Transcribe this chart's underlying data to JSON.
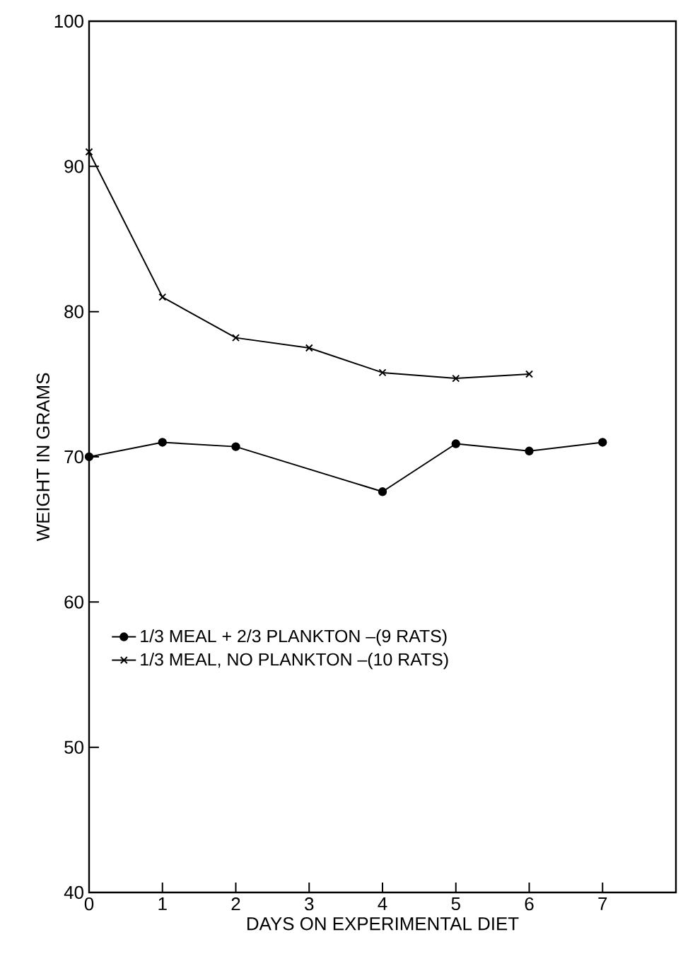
{
  "chart_data": {
    "type": "line",
    "xlabel": "DAYS    ON    EXPERIMENTAL  DIET",
    "ylabel": "WEIGHT    IN    GRAMS",
    "series": [
      {
        "name": "1/3 MEAL + 2/3 PLANKTON –(9 RATS)",
        "color": "#000000",
        "marker": "circle",
        "x": [
          0,
          1,
          2,
          4,
          5,
          6,
          7
        ],
        "values": [
          70,
          71,
          70.7,
          67.6,
          70.9,
          70.4,
          71
        ]
      },
      {
        "name": "1/3 MEAL, NO PLANKTON –(10 RATS)",
        "color": "#000000",
        "marker": "cross",
        "x": [
          0,
          1,
          2,
          3,
          4,
          5,
          6
        ],
        "values": [
          91,
          81,
          78.2,
          77.5,
          75.8,
          75.4,
          75.7
        ]
      }
    ],
    "xlim": [
      0,
      8
    ],
    "ylim": [
      40,
      100
    ],
    "xticks": [
      0,
      1,
      2,
      3,
      4,
      5,
      6,
      7
    ],
    "yticks": [
      40,
      50,
      60,
      70,
      80,
      90,
      100
    ],
    "grid": false,
    "legend": "left",
    "line_style": "solid"
  }
}
